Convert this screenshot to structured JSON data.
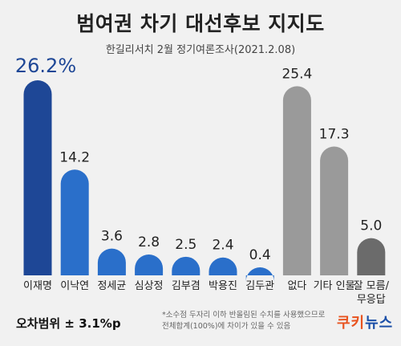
{
  "header": {
    "title": "범여권 차기 대선후보 지지도",
    "subtitle": "한길리서치 2월 정기여론조사(2021.2.08)"
  },
  "footer": {
    "margin_of_error": "오차범위 ± 3.1%p",
    "note_line1": "*소수점 두자리 이하 반올림된 수치를 사용했으므로",
    "note_line2": "전체합계(100%)에 차이가 있을 수 있음",
    "logo_part1": "쿠키",
    "logo_part2": "뉴스"
  },
  "colors": {
    "leader": "#1e4796",
    "blue": "#2a6fca",
    "gray": "#9a9a9a",
    "dark_gray": "#6b6b6b",
    "leader_label": "#1e4796"
  },
  "chart_data": {
    "type": "bar",
    "title": "범여권 차기 대선후보 지지도",
    "subtitle": "한길리서치 2월 정기여론조사(2021.2.08)",
    "categories": [
      "이재명",
      "이낙연",
      "정세균",
      "심상정",
      "김부겸",
      "박용진",
      "김두관",
      "없다",
      "기타 인물",
      "잘 모름/무응답"
    ],
    "category_lines": [
      [
        "이재명"
      ],
      [
        "이낙연"
      ],
      [
        "정세균"
      ],
      [
        "심상정"
      ],
      [
        "김부겸"
      ],
      [
        "박용진"
      ],
      [
        "김두관"
      ],
      [
        "없다"
      ],
      [
        "기타 인물"
      ],
      [
        "잘 모름/",
        "무응답"
      ]
    ],
    "values": [
      26.2,
      14.2,
      3.6,
      2.8,
      2.5,
      2.4,
      0.4,
      25.4,
      17.3,
      5.0
    ],
    "value_labels": [
      "26.2%",
      "14.2",
      "3.6",
      "2.8",
      "2.5",
      "2.4",
      "0.4",
      "25.4",
      "17.3",
      "5.0"
    ],
    "bar_color_keys": [
      "leader",
      "blue",
      "blue",
      "blue",
      "blue",
      "blue",
      "blue",
      "gray",
      "gray",
      "dark_gray"
    ],
    "ylim": [
      0,
      26.2
    ],
    "grid": false,
    "legend": "none"
  }
}
